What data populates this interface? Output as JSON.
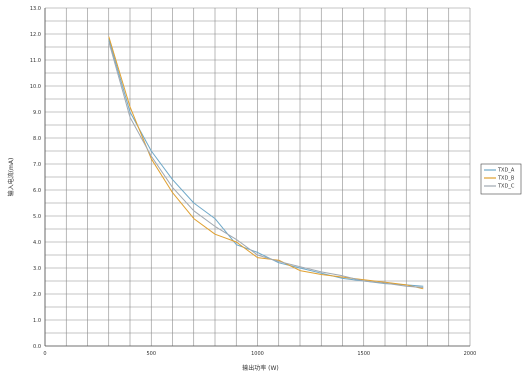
{
  "chart_data": {
    "type": "line",
    "title": "",
    "xlabel": "输出功率 (W)",
    "ylabel": "输入电流(mA)",
    "xlim": [
      0,
      2000
    ],
    "ylim": [
      0,
      13
    ],
    "x_ticks": [
      0,
      500,
      1000,
      1500,
      2000
    ],
    "x_tick_labels": [
      "0",
      "500",
      "1000",
      "1500",
      "2000"
    ],
    "y_ticks": [
      0,
      1,
      2,
      3,
      4,
      5,
      6,
      7,
      8,
      9,
      10,
      11,
      12,
      13
    ],
    "y_tick_labels": [
      "0.0",
      "1.0",
      "2.0",
      "3.0",
      "4.0",
      "5.0",
      "6.0",
      "7.0",
      "8.0",
      "9.0",
      "10.0",
      "11.0",
      "12.0",
      "13.0"
    ],
    "x_minor_step": 100,
    "y_minor_step": 0.5,
    "grid": true,
    "legend_position": "right",
    "series": [
      {
        "name": "TXD_A",
        "color": "#6fa8c8",
        "points": [
          [
            300,
            11.8
          ],
          [
            400,
            9.0
          ],
          [
            500,
            7.5
          ],
          [
            600,
            6.4
          ],
          [
            700,
            5.5
          ],
          [
            800,
            4.9
          ],
          [
            900,
            3.9
          ],
          [
            1000,
            3.6
          ],
          [
            1100,
            3.2
          ],
          [
            1200,
            3.0
          ],
          [
            1300,
            2.8
          ],
          [
            1400,
            2.6
          ],
          [
            1500,
            2.5
          ],
          [
            1600,
            2.4
          ],
          [
            1700,
            2.35
          ],
          [
            1780,
            2.3
          ]
        ]
      },
      {
        "name": "TXD_B",
        "color": "#e0a030",
        "points": [
          [
            300,
            11.9
          ],
          [
            400,
            9.2
          ],
          [
            500,
            7.2
          ],
          [
            600,
            5.9
          ],
          [
            700,
            4.9
          ],
          [
            800,
            4.3
          ],
          [
            900,
            4.0
          ],
          [
            1000,
            3.4
          ],
          [
            1100,
            3.3
          ],
          [
            1200,
            2.9
          ],
          [
            1300,
            2.75
          ],
          [
            1400,
            2.65
          ],
          [
            1500,
            2.55
          ],
          [
            1600,
            2.45
          ],
          [
            1700,
            2.35
          ],
          [
            1780,
            2.2
          ]
        ]
      },
      {
        "name": "TXD_C",
        "color": "#a0a8b0",
        "points": [
          [
            300,
            11.7
          ],
          [
            400,
            8.8
          ],
          [
            500,
            7.3
          ],
          [
            600,
            6.1
          ],
          [
            700,
            5.2
          ],
          [
            800,
            4.6
          ],
          [
            900,
            4.1
          ],
          [
            1000,
            3.5
          ],
          [
            1100,
            3.25
          ],
          [
            1200,
            3.05
          ],
          [
            1300,
            2.85
          ],
          [
            1400,
            2.7
          ],
          [
            1500,
            2.5
          ],
          [
            1600,
            2.42
          ],
          [
            1700,
            2.3
          ],
          [
            1780,
            2.25
          ]
        ]
      }
    ]
  }
}
